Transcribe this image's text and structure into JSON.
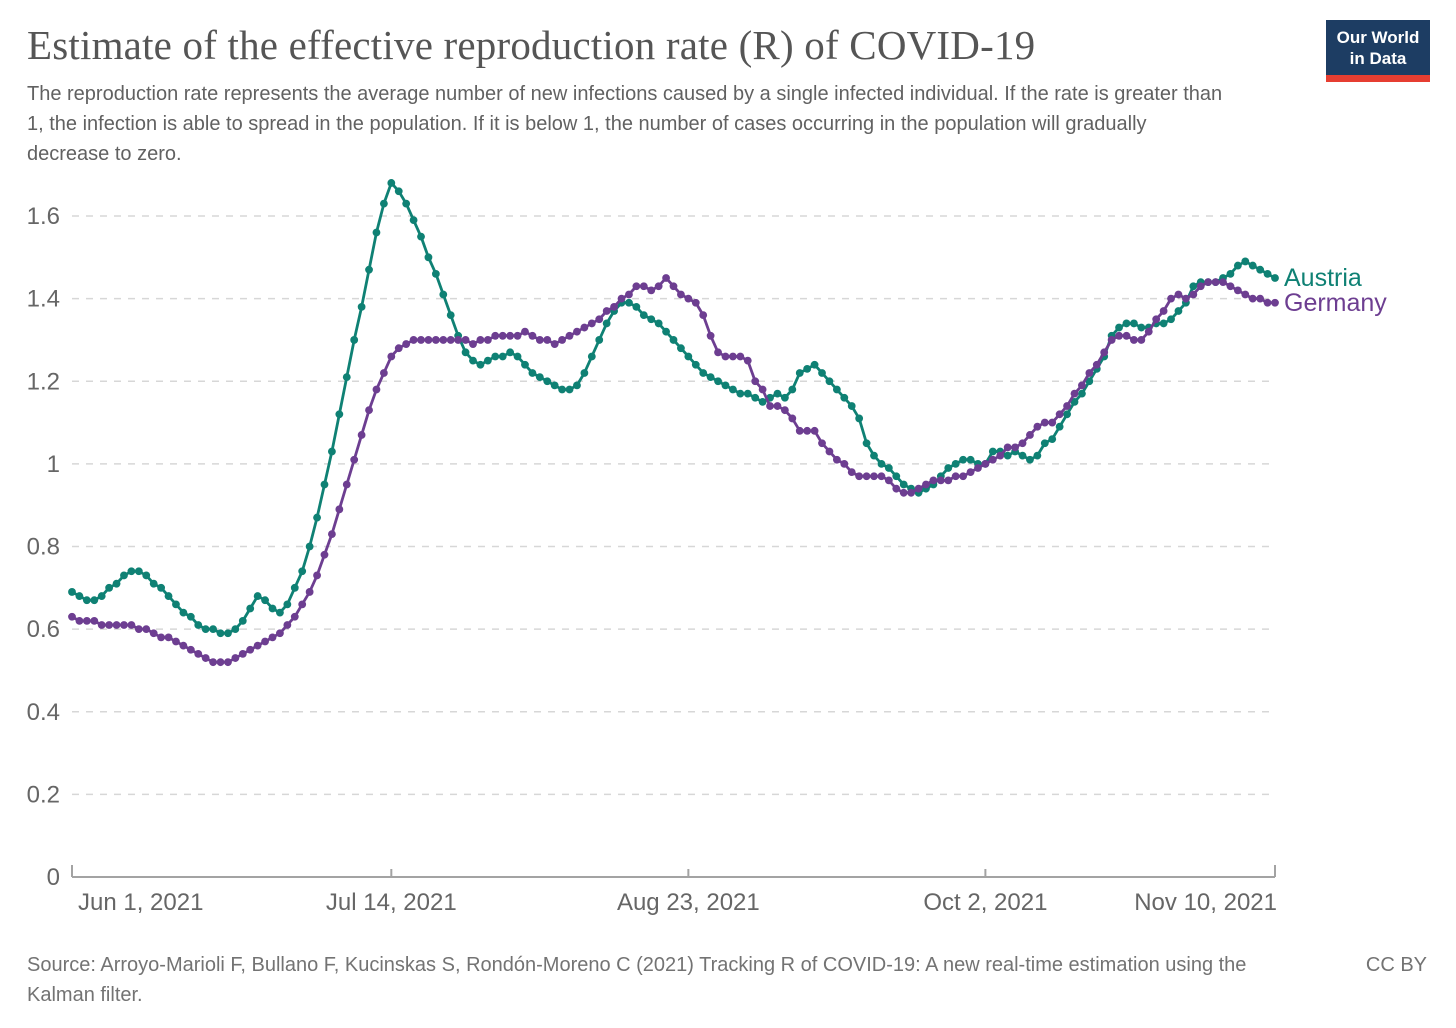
{
  "header": {
    "title": "Estimate of the effective reproduction rate (R) of COVID-19",
    "subtitle": "The reproduction rate represents the average number of new infections caused by a single infected individual. If the rate is greater than 1, the infection is able to spread in the population. If it is below 1, the number of cases occurring in the population will gradually decrease to zero.",
    "logo": {
      "line1": "Our World",
      "line2": "in Data",
      "bg_color": "#1D3D63",
      "bar_color": "#E63E31"
    }
  },
  "chart_data": {
    "type": "line",
    "title": "Estimate of the effective reproduction rate (R) of COVID-19",
    "x_start_date": "Jun 1, 2021",
    "x_end_date": "Nov 10, 2021",
    "x_cadence": "daily",
    "x_tick_labels": [
      "Jun 1, 2021",
      "Jul 14, 2021",
      "Aug 23, 2021",
      "Oct 2, 2021",
      "Nov 10, 2021"
    ],
    "x_tick_days": [
      0,
      43,
      83,
      123,
      162
    ],
    "y_ticks": [
      0,
      0.2,
      0.4,
      0.6,
      0.8,
      1,
      1.2,
      1.4,
      1.6
    ],
    "ylim": [
      0,
      1.7
    ],
    "grid": "horizontal-dashed",
    "legend_position": "right-of-line-ends",
    "marker": "point-on-every-day",
    "series": [
      {
        "name": "Austria",
        "color": "#0F8174",
        "values": [
          0.69,
          0.68,
          0.67,
          0.67,
          0.68,
          0.7,
          0.71,
          0.73,
          0.74,
          0.74,
          0.73,
          0.71,
          0.7,
          0.68,
          0.66,
          0.64,
          0.63,
          0.61,
          0.6,
          0.6,
          0.59,
          0.59,
          0.6,
          0.62,
          0.65,
          0.68,
          0.67,
          0.65,
          0.64,
          0.66,
          0.7,
          0.74,
          0.8,
          0.87,
          0.95,
          1.03,
          1.12,
          1.21,
          1.3,
          1.38,
          1.47,
          1.56,
          1.63,
          1.68,
          1.66,
          1.63,
          1.59,
          1.55,
          1.5,
          1.46,
          1.41,
          1.36,
          1.31,
          1.27,
          1.25,
          1.24,
          1.25,
          1.26,
          1.26,
          1.27,
          1.26,
          1.24,
          1.22,
          1.21,
          1.2,
          1.19,
          1.18,
          1.18,
          1.19,
          1.22,
          1.26,
          1.3,
          1.34,
          1.37,
          1.39,
          1.39,
          1.38,
          1.36,
          1.35,
          1.34,
          1.32,
          1.3,
          1.28,
          1.26,
          1.24,
          1.22,
          1.21,
          1.2,
          1.19,
          1.18,
          1.17,
          1.17,
          1.16,
          1.15,
          1.16,
          1.17,
          1.16,
          1.18,
          1.22,
          1.23,
          1.24,
          1.22,
          1.2,
          1.18,
          1.16,
          1.14,
          1.11,
          1.05,
          1.02,
          1.0,
          0.99,
          0.97,
          0.95,
          0.94,
          0.93,
          0.94,
          0.95,
          0.97,
          0.99,
          1.0,
          1.01,
          1.01,
          1.0,
          1.0,
          1.03,
          1.03,
          1.02,
          1.03,
          1.02,
          1.01,
          1.02,
          1.05,
          1.06,
          1.09,
          1.12,
          1.15,
          1.17,
          1.2,
          1.23,
          1.26,
          1.31,
          1.33,
          1.34,
          1.34,
          1.33,
          1.33,
          1.34,
          1.34,
          1.35,
          1.37,
          1.39,
          1.43,
          1.44,
          1.44,
          1.44,
          1.45,
          1.46,
          1.48,
          1.49,
          1.48,
          1.47,
          1.46,
          1.45
        ]
      },
      {
        "name": "Germany",
        "color": "#6D3E91",
        "values": [
          0.63,
          0.62,
          0.62,
          0.62,
          0.61,
          0.61,
          0.61,
          0.61,
          0.61,
          0.6,
          0.6,
          0.59,
          0.58,
          0.58,
          0.57,
          0.56,
          0.55,
          0.54,
          0.53,
          0.52,
          0.52,
          0.52,
          0.53,
          0.54,
          0.55,
          0.56,
          0.57,
          0.58,
          0.59,
          0.61,
          0.63,
          0.66,
          0.69,
          0.73,
          0.78,
          0.83,
          0.89,
          0.95,
          1.01,
          1.07,
          1.13,
          1.18,
          1.22,
          1.26,
          1.28,
          1.29,
          1.3,
          1.3,
          1.3,
          1.3,
          1.3,
          1.3,
          1.3,
          1.3,
          1.29,
          1.3,
          1.3,
          1.31,
          1.31,
          1.31,
          1.31,
          1.32,
          1.31,
          1.3,
          1.3,
          1.29,
          1.3,
          1.31,
          1.32,
          1.33,
          1.34,
          1.35,
          1.37,
          1.38,
          1.4,
          1.41,
          1.43,
          1.43,
          1.42,
          1.43,
          1.45,
          1.43,
          1.41,
          1.4,
          1.39,
          1.36,
          1.31,
          1.27,
          1.26,
          1.26,
          1.26,
          1.25,
          1.2,
          1.18,
          1.14,
          1.14,
          1.13,
          1.11,
          1.08,
          1.08,
          1.08,
          1.05,
          1.03,
          1.01,
          1.0,
          0.98,
          0.97,
          0.97,
          0.97,
          0.97,
          0.96,
          0.94,
          0.93,
          0.93,
          0.94,
          0.95,
          0.96,
          0.96,
          0.96,
          0.97,
          0.97,
          0.98,
          0.99,
          1.0,
          1.01,
          1.02,
          1.04,
          1.04,
          1.05,
          1.07,
          1.09,
          1.1,
          1.1,
          1.12,
          1.14,
          1.17,
          1.19,
          1.22,
          1.24,
          1.27,
          1.3,
          1.31,
          1.31,
          1.3,
          1.3,
          1.32,
          1.35,
          1.37,
          1.4,
          1.41,
          1.4,
          1.41,
          1.43,
          1.44,
          1.44,
          1.44,
          1.43,
          1.42,
          1.41,
          1.4,
          1.4,
          1.39,
          1.39
        ]
      }
    ]
  },
  "footer": {
    "source": "Source: Arroyo-Marioli F, Bullano F, Kucinskas S, Rondón-Moreno C (2021) Tracking R of COVID-19: A new real-time estimation using the Kalman filter.",
    "license": "CC BY"
  }
}
